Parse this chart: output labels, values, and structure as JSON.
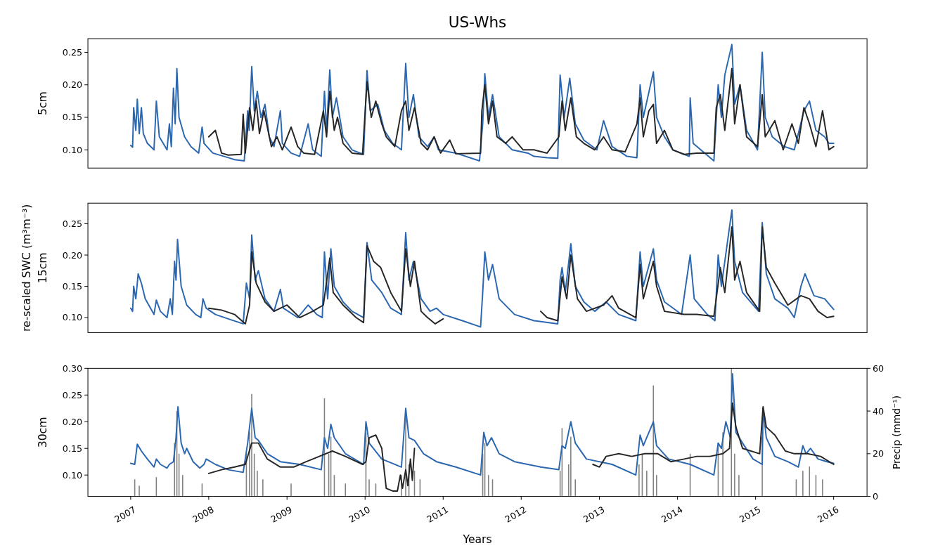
{
  "chart_data": [
    {
      "type": "line",
      "title": "US-Whs",
      "ylabel": "5cm",
      "tick_labels": "y",
      "xlim": [
        "2006-06-15",
        "2016-06-05"
      ],
      "ylim": [
        0.072,
        0.271
      ],
      "yticks": [
        {
          "value": 0.1,
          "label": "0.10"
        },
        {
          "value": 0.15,
          "label": "0.15"
        },
        {
          "value": 0.2,
          "label": "0.20"
        },
        {
          "value": 0.25,
          "label": "0.25"
        }
      ],
      "series": [
        {
          "color": "#2a67b0",
          "x": [
            "2007-01-01",
            "2007-01-10",
            "2007-01-15",
            "2007-01-25",
            "2007-02-01",
            "2007-02-10",
            "2007-02-20",
            "2007-03-01",
            "2007-03-20",
            "2007-04-20",
            "2007-05-01",
            "2007-05-15",
            "2007-06-20",
            "2007-07-01",
            "2007-07-10",
            "2007-07-20",
            "2007-07-28",
            "2007-08-05",
            "2007-08-15",
            "2007-09-10",
            "2007-10-10",
            "2007-11-15",
            "2007-12-01",
            "2007-12-10",
            "2008-01-20",
            "2008-04-01",
            "2008-05-01",
            "2008-06-15",
            "2008-07-01",
            "2008-07-08",
            "2008-07-20",
            "2008-08-01",
            "2008-08-15",
            "2008-09-01",
            "2008-09-20",
            "2008-10-10",
            "2008-11-01",
            "2008-12-01",
            "2008-12-10",
            "2009-01-20",
            "2009-03-01",
            "2009-04-10",
            "2009-05-01",
            "2009-06-10",
            "2009-06-25",
            "2009-07-05",
            "2009-07-20",
            "2009-08-01",
            "2009-08-20",
            "2009-09-20",
            "2009-11-01",
            "2009-12-25",
            "2010-01-10",
            "2010-01-25",
            "2010-03-01",
            "2010-04-01",
            "2010-05-10",
            "2010-06-20",
            "2010-07-10",
            "2010-07-25",
            "2010-08-15",
            "2010-09-10",
            "2010-10-20",
            "2010-11-20",
            "2010-12-10",
            "2011-03-01",
            "2011-06-20",
            "2011-07-05",
            "2011-07-15",
            "2011-08-01",
            "2011-08-20",
            "2011-09-20",
            "2011-11-20",
            "2012-02-01",
            "2012-03-01",
            "2012-05-01",
            "2012-06-20",
            "2012-07-01",
            "2012-07-20",
            "2012-08-15",
            "2012-09-10",
            "2012-10-20",
            "2012-12-20",
            "2013-01-20",
            "2013-03-01",
            "2013-05-10",
            "2013-06-25",
            "2013-07-10",
            "2013-07-25",
            "2013-09-10",
            "2013-09-25",
            "2013-11-01",
            "2013-12-10",
            "2014-02-25",
            "2014-03-01",
            "2014-03-15",
            "2014-06-20",
            "2014-07-10",
            "2014-07-25",
            "2014-08-10",
            "2014-09-12",
            "2014-09-25",
            "2014-10-20",
            "2014-11-20",
            "2015-01-10",
            "2015-02-01",
            "2015-02-15",
            "2015-03-20",
            "2015-05-15",
            "2015-07-01",
            "2015-08-15",
            "2015-09-10",
            "2015-10-10",
            "2015-11-20",
            "2015-12-10",
            "2016-01-01"
          ],
          "values": [
            0.107,
            0.104,
            0.165,
            0.13,
            0.178,
            0.125,
            0.165,
            0.125,
            0.11,
            0.1,
            0.175,
            0.12,
            0.1,
            0.14,
            0.105,
            0.195,
            0.14,
            0.225,
            0.15,
            0.12,
            0.105,
            0.095,
            0.135,
            0.11,
            0.095,
            0.088,
            0.085,
            0.083,
            0.16,
            0.13,
            0.228,
            0.16,
            0.19,
            0.15,
            0.17,
            0.12,
            0.105,
            0.16,
            0.11,
            0.095,
            0.09,
            0.14,
            0.1,
            0.09,
            0.19,
            0.13,
            0.223,
            0.15,
            0.18,
            0.12,
            0.1,
            0.093,
            0.222,
            0.16,
            0.17,
            0.13,
            0.11,
            0.1,
            0.233,
            0.15,
            0.185,
            0.12,
            0.105,
            0.12,
            0.1,
            0.095,
            0.083,
            0.14,
            0.217,
            0.15,
            0.185,
            0.12,
            0.1,
            0.095,
            0.09,
            0.088,
            0.087,
            0.215,
            0.15,
            0.21,
            0.14,
            0.115,
            0.1,
            0.145,
            0.105,
            0.09,
            0.088,
            0.2,
            0.15,
            0.22,
            0.15,
            0.12,
            0.1,
            0.09,
            0.18,
            0.11,
            0.083,
            0.2,
            0.15,
            0.215,
            0.262,
            0.17,
            0.2,
            0.13,
            0.1,
            0.25,
            0.15,
            0.12,
            0.105,
            0.1,
            0.16,
            0.175,
            0.13,
            0.12,
            0.11,
            0.11
          ]
        },
        {
          "color": "#262626",
          "x": [
            "2008-01-01",
            "2008-02-01",
            "2008-03-01",
            "2008-04-01",
            "2008-06-01",
            "2008-06-10",
            "2008-06-20",
            "2008-07-10",
            "2008-07-25",
            "2008-08-10",
            "2008-08-25",
            "2008-09-15",
            "2008-10-20",
            "2008-11-15",
            "2008-12-10",
            "2009-01-20",
            "2009-02-20",
            "2009-03-20",
            "2009-05-10",
            "2009-06-20",
            "2009-07-05",
            "2009-07-20",
            "2009-08-10",
            "2009-08-25",
            "2009-09-20",
            "2009-11-01",
            "2009-12-20",
            "2010-01-10",
            "2010-01-30",
            "2010-02-20",
            "2010-03-20",
            "2010-04-10",
            "2010-05-20",
            "2010-06-20",
            "2010-07-10",
            "2010-07-25",
            "2010-08-20",
            "2010-09-20",
            "2010-10-20",
            "2010-11-20",
            "2010-12-20",
            "2011-02-01",
            "2011-03-01",
            "2011-06-25",
            "2011-07-01",
            "2011-07-15",
            "2011-08-01",
            "2011-08-20",
            "2011-09-10",
            "2011-10-20",
            "2011-11-20",
            "2012-01-10",
            "2012-03-01",
            "2012-05-01",
            "2012-06-25",
            "2012-07-10",
            "2012-07-25",
            "2012-08-20",
            "2012-09-15",
            "2012-10-20",
            "2012-12-10",
            "2013-01-20",
            "2013-03-01",
            "2013-05-01",
            "2013-06-25",
            "2013-07-10",
            "2013-07-25",
            "2013-08-20",
            "2013-09-10",
            "2013-09-25",
            "2013-11-01",
            "2013-12-10",
            "2014-02-01",
            "2014-04-01",
            "2014-06-20",
            "2014-07-01",
            "2014-07-20",
            "2014-08-10",
            "2014-09-12",
            "2014-09-25",
            "2014-10-20",
            "2014-11-20",
            "2015-01-10",
            "2015-02-01",
            "2015-02-15",
            "2015-04-01",
            "2015-05-10",
            "2015-06-20",
            "2015-07-20",
            "2015-08-15",
            "2015-09-10",
            "2015-10-10",
            "2015-11-10",
            "2015-12-10",
            "2016-01-01"
          ],
          "values": [
            0.12,
            0.13,
            0.095,
            0.092,
            0.093,
            0.155,
            0.095,
            0.165,
            0.13,
            0.175,
            0.125,
            0.16,
            0.105,
            0.12,
            0.1,
            0.135,
            0.105,
            0.095,
            0.093,
            0.16,
            0.12,
            0.19,
            0.13,
            0.15,
            0.11,
            0.095,
            0.093,
            0.205,
            0.15,
            0.175,
            0.14,
            0.12,
            0.105,
            0.16,
            0.175,
            0.13,
            0.165,
            0.11,
            0.1,
            0.12,
            0.095,
            0.115,
            0.094,
            0.095,
            0.16,
            0.2,
            0.14,
            0.175,
            0.12,
            0.11,
            0.12,
            0.1,
            0.1,
            0.095,
            0.12,
            0.175,
            0.13,
            0.18,
            0.12,
            0.11,
            0.1,
            0.12,
            0.1,
            0.097,
            0.14,
            0.18,
            0.12,
            0.16,
            0.17,
            0.11,
            0.13,
            0.1,
            0.093,
            0.095,
            0.095,
            0.165,
            0.185,
            0.13,
            0.225,
            0.14,
            0.2,
            0.12,
            0.105,
            0.185,
            0.12,
            0.145,
            0.1,
            0.14,
            0.11,
            0.165,
            0.14,
            0.105,
            0.16,
            0.1,
            0.105
          ]
        }
      ]
    },
    {
      "type": "line",
      "ylabel": "15cm",
      "annotations": [
        "re-scaled SWC (m³m⁻³)"
      ],
      "tick_labels": "y",
      "xlim": [
        "2006-06-15",
        "2016-06-05"
      ],
      "ylim": [
        0.076,
        0.283
      ],
      "yticks": [
        {
          "value": 0.1,
          "label": "0.10"
        },
        {
          "value": 0.15,
          "label": "0.15"
        },
        {
          "value": 0.2,
          "label": "0.20"
        },
        {
          "value": 0.25,
          "label": "0.25"
        }
      ],
      "series": [
        {
          "color": "#2a67b0",
          "x": [
            "2007-01-01",
            "2007-01-10",
            "2007-01-15",
            "2007-01-25",
            "2007-02-05",
            "2007-02-20",
            "2007-03-10",
            "2007-04-20",
            "2007-05-01",
            "2007-05-20",
            "2007-06-20",
            "2007-07-05",
            "2007-07-15",
            "2007-07-25",
            "2007-08-01",
            "2007-08-08",
            "2007-08-25",
            "2007-09-20",
            "2007-11-01",
            "2007-11-25",
            "2007-12-05",
            "2007-12-20",
            "2008-02-01",
            "2008-04-01",
            "2008-06-10",
            "2008-06-25",
            "2008-07-10",
            "2008-07-20",
            "2008-08-05",
            "2008-08-20",
            "2008-09-20",
            "2008-11-01",
            "2008-12-01",
            "2008-12-15",
            "2009-02-20",
            "2009-04-10",
            "2009-05-20",
            "2009-06-15",
            "2009-06-25",
            "2009-07-10",
            "2009-07-25",
            "2009-08-10",
            "2009-09-20",
            "2009-11-01",
            "2009-12-25",
            "2010-01-10",
            "2010-02-01",
            "2010-03-20",
            "2010-05-01",
            "2010-06-20",
            "2010-07-10",
            "2010-07-25",
            "2010-08-15",
            "2010-09-20",
            "2010-11-01",
            "2010-12-01",
            "2011-01-01",
            "2011-04-01",
            "2011-06-25",
            "2011-07-05",
            "2011-07-15",
            "2011-08-01",
            "2011-08-20",
            "2011-09-20",
            "2011-12-01",
            "2012-03-01",
            "2012-06-20",
            "2012-07-01",
            "2012-07-10",
            "2012-07-25",
            "2012-08-20",
            "2012-09-10",
            "2012-10-20",
            "2012-12-10",
            "2013-02-01",
            "2013-04-01",
            "2013-06-20",
            "2013-07-10",
            "2013-07-25",
            "2013-09-10",
            "2013-09-25",
            "2013-11-01",
            "2014-01-20",
            "2014-03-01",
            "2014-03-20",
            "2014-05-20",
            "2014-06-25",
            "2014-07-10",
            "2014-07-25",
            "2014-09-12",
            "2014-09-25",
            "2014-11-01",
            "2015-01-15",
            "2015-02-01",
            "2015-02-20",
            "2015-04-01",
            "2015-06-01",
            "2015-07-01",
            "2015-08-01",
            "2015-08-20",
            "2015-10-01",
            "2015-11-20",
            "2016-01-01"
          ],
          "values": [
            0.115,
            0.11,
            0.15,
            0.13,
            0.17,
            0.155,
            0.13,
            0.105,
            0.128,
            0.11,
            0.1,
            0.13,
            0.105,
            0.19,
            0.16,
            0.225,
            0.15,
            0.12,
            0.105,
            0.1,
            0.13,
            0.115,
            0.105,
            0.098,
            0.09,
            0.155,
            0.13,
            0.232,
            0.16,
            0.175,
            0.13,
            0.11,
            0.145,
            0.115,
            0.1,
            0.12,
            0.105,
            0.1,
            0.205,
            0.13,
            0.21,
            0.15,
            0.125,
            0.11,
            0.1,
            0.22,
            0.16,
            0.14,
            0.115,
            0.105,
            0.236,
            0.16,
            0.19,
            0.13,
            0.11,
            0.115,
            0.105,
            0.095,
            0.085,
            0.14,
            0.205,
            0.16,
            0.185,
            0.13,
            0.105,
            0.095,
            0.09,
            0.16,
            0.18,
            0.14,
            0.218,
            0.15,
            0.125,
            0.11,
            0.125,
            0.105,
            0.095,
            0.205,
            0.15,
            0.21,
            0.16,
            0.125,
            0.105,
            0.2,
            0.13,
            0.105,
            0.095,
            0.2,
            0.15,
            0.272,
            0.19,
            0.14,
            0.11,
            0.252,
            0.17,
            0.13,
            0.115,
            0.1,
            0.15,
            0.17,
            0.135,
            0.13,
            0.113
          ]
        },
        {
          "color": "#262626",
          "x": [
            "2008-01-01",
            "2008-03-01",
            "2008-05-01",
            "2008-06-20",
            "2008-07-10",
            "2008-07-20",
            "2008-08-10",
            "2008-09-20",
            "2008-11-01",
            "2009-01-01",
            "2009-03-01",
            "2009-05-01",
            "2009-06-20",
            "2009-07-20",
            "2009-08-05",
            "2009-09-20",
            "2009-11-20",
            "2009-12-25",
            "2010-01-10",
            "2010-02-10",
            "2010-03-15",
            "2010-05-01",
            "2010-06-20",
            "2010-07-10",
            "2010-08-01",
            "2010-08-20",
            "2010-09-20",
            "2010-10-20",
            "2010-11-25",
            "2011-01-01",
            "2011-08-01",
            "2012-04-01",
            "2012-05-01",
            "2012-06-20",
            "2012-07-10",
            "2012-08-01",
            "2012-08-20",
            "2012-09-20",
            "2012-11-01",
            "2013-01-20",
            "2013-03-01",
            "2013-04-01",
            "2013-06-20",
            "2013-07-10",
            "2013-07-25",
            "2013-09-10",
            "2013-09-25",
            "2013-11-01",
            "2014-02-01",
            "2014-04-01",
            "2014-06-20",
            "2014-07-20",
            "2014-08-10",
            "2014-09-12",
            "2014-09-25",
            "2014-10-20",
            "2014-11-20",
            "2015-01-20",
            "2015-02-01",
            "2015-02-20",
            "2015-04-01",
            "2015-06-01",
            "2015-08-01",
            "2015-09-10",
            "2015-10-20",
            "2015-12-01",
            "2016-01-01"
          ],
          "values": [
            0.115,
            0.112,
            0.105,
            0.09,
            0.12,
            0.205,
            0.155,
            0.125,
            0.11,
            0.12,
            0.1,
            0.11,
            0.12,
            0.195,
            0.14,
            0.12,
            0.1,
            0.092,
            0.215,
            0.19,
            0.18,
            0.14,
            0.11,
            0.21,
            0.15,
            0.19,
            0.11,
            0.1,
            0.09,
            0.098,
            null,
            0.11,
            0.1,
            0.095,
            0.165,
            0.13,
            0.2,
            0.13,
            0.11,
            0.12,
            0.135,
            0.115,
            0.1,
            0.185,
            0.13,
            0.19,
            0.15,
            0.11,
            0.105,
            0.105,
            0.102,
            0.18,
            0.14,
            0.245,
            0.16,
            0.19,
            0.14,
            0.11,
            0.245,
            0.18,
            0.155,
            0.12,
            0.135,
            0.13,
            0.11,
            0.1,
            0.102
          ]
        }
      ]
    },
    {
      "type": "line",
      "ylabel": "30cm",
      "xlabel": "Years",
      "y2label": "Precip (mmd⁻¹)",
      "xlim": [
        "2006-06-15",
        "2016-06-05"
      ],
      "xticks": [
        "2007",
        "2008",
        "2009",
        "2010",
        "2011",
        "2012",
        "2013",
        "2014",
        "2015",
        "2016"
      ],
      "ylim": [
        0.06,
        0.3
      ],
      "yticks": [
        {
          "value": 0.1,
          "label": "0.10"
        },
        {
          "value": 0.15,
          "label": "0.15"
        },
        {
          "value": 0.2,
          "label": "0.20"
        },
        {
          "value": 0.25,
          "label": "0.25"
        },
        {
          "value": 0.3,
          "label": "0.30"
        }
      ],
      "y2lim": [
        0,
        60
      ],
      "y2ticks": [
        0,
        20,
        40,
        60
      ],
      "series": [
        {
          "type": "bar",
          "axis": "y2",
          "color": "#808080",
          "x": [
            "2007-01-20",
            "2007-02-10",
            "2007-05-01",
            "2007-07-25",
            "2007-08-05",
            "2007-08-15",
            "2007-09-01",
            "2007-12-01",
            "2008-06-25",
            "2008-07-10",
            "2008-07-20",
            "2008-08-01",
            "2008-08-15",
            "2008-09-10",
            "2009-01-20",
            "2009-06-25",
            "2009-07-15",
            "2009-07-25",
            "2009-08-10",
            "2009-10-01",
            "2010-01-05",
            "2010-01-20",
            "2010-02-20",
            "2010-06-20",
            "2010-07-10",
            "2010-07-25",
            "2010-08-20",
            "2010-09-15",
            "2011-07-05",
            "2011-07-15",
            "2011-08-01",
            "2011-08-20",
            "2012-07-01",
            "2012-07-10",
            "2012-08-10",
            "2012-08-20",
            "2012-09-10",
            "2013-07-05",
            "2013-07-20",
            "2013-08-10",
            "2013-09-10",
            "2013-09-25",
            "2014-03-01",
            "2014-07-10",
            "2014-08-01",
            "2014-09-10",
            "2014-09-25",
            "2014-10-15",
            "2015-02-01",
            "2015-07-10",
            "2015-08-10",
            "2015-09-10",
            "2015-10-10",
            "2015-11-10"
          ],
          "values": [
            8,
            5,
            9,
            25,
            40,
            20,
            10,
            6,
            20,
            30,
            48,
            20,
            12,
            8,
            6,
            46,
            20,
            28,
            10,
            6,
            30,
            8,
            6,
            10,
            38,
            15,
            12,
            8,
            20,
            25,
            10,
            8,
            12,
            32,
            15,
            28,
            8,
            15,
            20,
            12,
            52,
            10,
            20,
            25,
            30,
            60,
            20,
            10,
            28,
            8,
            12,
            14,
            10,
            8
          ]
        },
        {
          "color": "#2a67b0",
          "x": [
            "2007-01-01",
            "2007-01-20",
            "2007-02-01",
            "2007-02-20",
            "2007-03-20",
            "2007-04-20",
            "2007-05-01",
            "2007-05-20",
            "2007-06-20",
            "2007-07-01",
            "2007-07-20",
            "2007-08-01",
            "2007-08-10",
            "2007-08-25",
            "2007-09-10",
            "2007-09-20",
            "2007-10-20",
            "2007-11-20",
            "2007-12-10",
            "2007-12-20",
            "2008-02-01",
            "2008-04-01",
            "2008-06-10",
            "2008-07-01",
            "2008-07-20",
            "2008-08-05",
            "2008-08-20",
            "2008-10-01",
            "2008-12-01",
            "2009-03-01",
            "2009-06-10",
            "2009-06-25",
            "2009-07-10",
            "2009-07-25",
            "2009-08-10",
            "2009-10-01",
            "2009-12-25",
            "2010-01-05",
            "2010-01-20",
            "2010-03-20",
            "2010-06-20",
            "2010-07-10",
            "2010-07-25",
            "2010-08-20",
            "2010-10-01",
            "2010-12-01",
            "2011-03-01",
            "2011-06-25",
            "2011-07-10",
            "2011-07-25",
            "2011-08-15",
            "2011-09-20",
            "2011-12-01",
            "2012-04-01",
            "2012-06-25",
            "2012-07-10",
            "2012-07-25",
            "2012-08-20",
            "2012-09-10",
            "2012-11-01",
            "2013-03-01",
            "2013-06-20",
            "2013-07-10",
            "2013-07-25",
            "2013-09-10",
            "2013-09-25",
            "2013-11-20",
            "2014-03-01",
            "2014-06-20",
            "2014-07-10",
            "2014-07-25",
            "2014-08-15",
            "2014-09-05",
            "2014-09-15",
            "2014-10-01",
            "2014-11-01",
            "2014-12-20",
            "2015-02-01",
            "2015-02-05",
            "2015-02-20",
            "2015-04-01",
            "2015-06-01",
            "2015-07-20",
            "2015-08-10",
            "2015-08-25",
            "2015-09-15",
            "2015-10-20",
            "2015-12-01",
            "2016-01-01"
          ],
          "values": [
            0.122,
            0.12,
            0.158,
            0.145,
            0.13,
            0.115,
            0.13,
            0.12,
            0.113,
            0.12,
            0.125,
            0.17,
            0.228,
            0.16,
            0.14,
            0.15,
            0.125,
            0.113,
            0.12,
            0.13,
            0.12,
            0.11,
            0.105,
            0.16,
            0.225,
            0.17,
            0.165,
            0.14,
            0.125,
            0.12,
            0.11,
            0.17,
            0.15,
            0.195,
            0.17,
            0.14,
            0.12,
            0.2,
            0.16,
            0.13,
            0.115,
            0.225,
            0.17,
            0.165,
            0.14,
            0.125,
            0.115,
            0.1,
            0.18,
            0.155,
            0.17,
            0.14,
            0.125,
            0.115,
            0.11,
            0.155,
            0.15,
            0.2,
            0.16,
            0.13,
            0.12,
            0.1,
            0.175,
            0.155,
            0.2,
            0.155,
            0.13,
            0.12,
            0.1,
            0.16,
            0.15,
            0.2,
            0.17,
            0.29,
            0.18,
            0.16,
            0.13,
            0.12,
            0.225,
            0.17,
            0.135,
            0.125,
            0.115,
            0.155,
            0.14,
            0.15,
            0.13,
            0.125,
            0.122
          ]
        },
        {
          "color": "#262626",
          "x": [
            "2008-01-01",
            "2008-03-01",
            "2008-05-01",
            "2008-06-20",
            "2008-07-20",
            "2008-08-20",
            "2008-10-01",
            "2008-12-01",
            "2009-02-01",
            "2009-04-01",
            "2009-06-01",
            "2009-08-01",
            "2009-10-01",
            "2009-12-20",
            "2010-01-05",
            "2010-01-20",
            "2010-02-20",
            "2010-03-20",
            "2010-04-10",
            "2010-05-10",
            "2010-06-01",
            "2010-06-15",
            "2010-06-25",
            "2010-07-10",
            "2010-07-20",
            "2010-08-01",
            "2010-08-10",
            "2010-08-20",
            "2011-10-01",
            "2012-12-01",
            "2013-01-01",
            "2013-02-01",
            "2013-04-01",
            "2013-06-01",
            "2013-08-01",
            "2013-10-01",
            "2013-12-01",
            "2014-02-01",
            "2014-04-01",
            "2014-06-01",
            "2014-08-01",
            "2014-09-01",
            "2014-09-15",
            "2014-10-01",
            "2014-11-01",
            "2015-01-20",
            "2015-02-05",
            "2015-02-20",
            "2015-04-01",
            "2015-05-20",
            "2015-07-01",
            "2015-09-01",
            "2015-11-01",
            "2016-01-01"
          ],
          "values": [
            0.103,
            0.11,
            0.115,
            0.12,
            0.16,
            0.16,
            0.13,
            0.115,
            0.115,
            0.125,
            0.135,
            0.145,
            0.135,
            0.12,
            0.125,
            0.17,
            0.175,
            0.15,
            0.075,
            0.07,
            0.07,
            0.1,
            0.075,
            0.11,
            0.08,
            0.13,
            0.09,
            0.15,
            null,
            0.12,
            0.115,
            0.135,
            0.14,
            0.135,
            0.14,
            0.14,
            0.125,
            0.13,
            0.135,
            0.135,
            0.14,
            0.15,
            0.235,
            0.19,
            0.15,
            0.14,
            0.228,
            0.19,
            0.175,
            0.145,
            0.14,
            0.14,
            0.135,
            0.12
          ]
        }
      ]
    }
  ]
}
